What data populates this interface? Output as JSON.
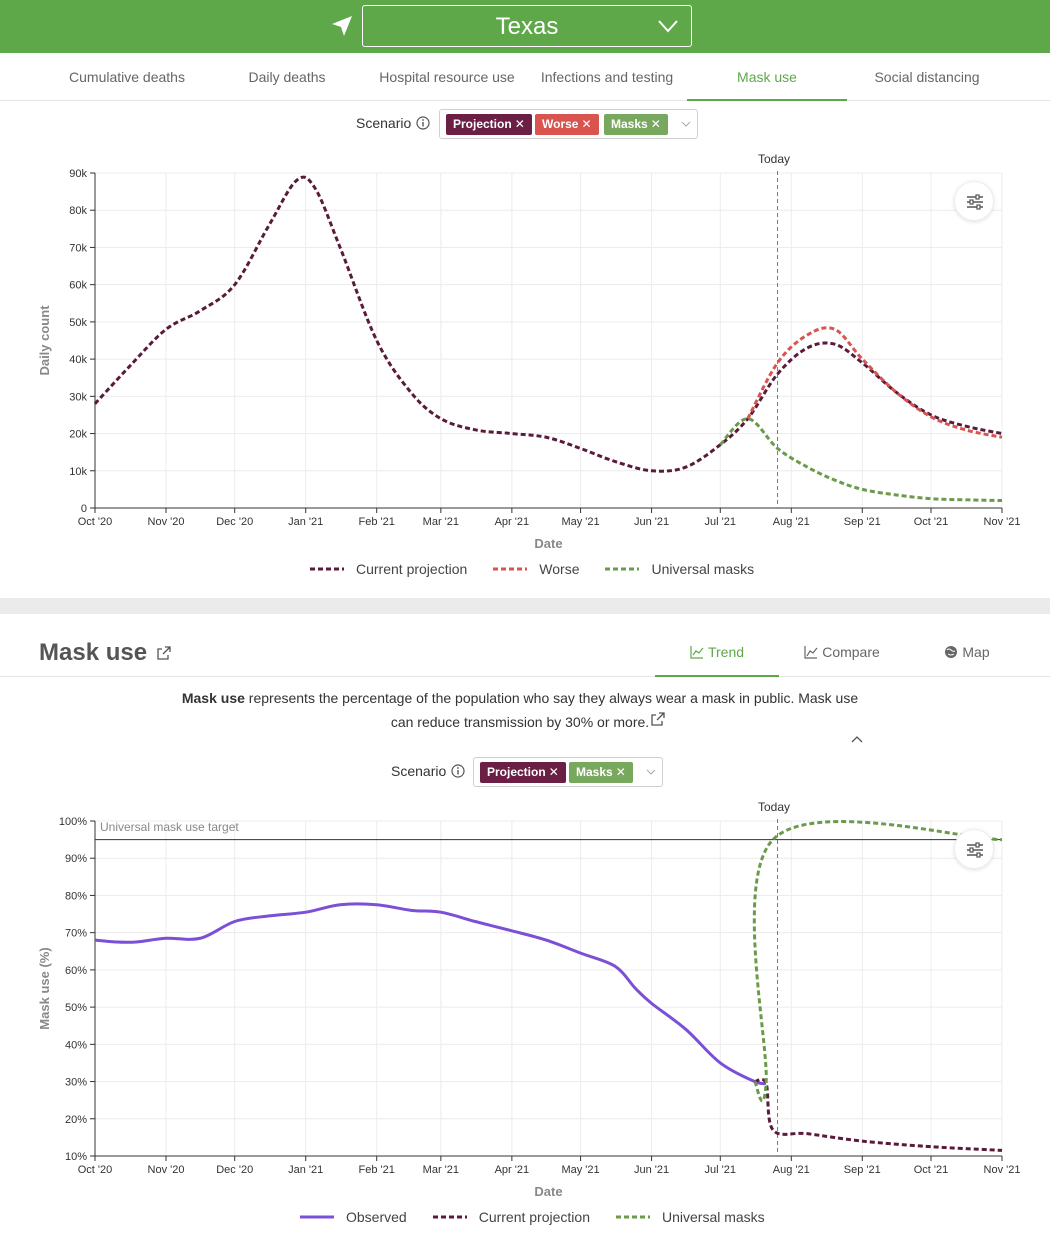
{
  "header": {
    "state": "Texas"
  },
  "tabs": [
    {
      "label": "Cumulative deaths",
      "active": false
    },
    {
      "label": "Daily deaths",
      "active": false
    },
    {
      "label": "Hospital resource use",
      "active": false
    },
    {
      "label": "Infections and testing",
      "active": false
    },
    {
      "label": "Mask use",
      "active": true
    },
    {
      "label": "Social distancing",
      "active": false
    }
  ],
  "infections_section": {
    "scenario_label": "Scenario",
    "chips": [
      {
        "label": "Projection",
        "color": "#6b1f45"
      },
      {
        "label": "Worse",
        "color": "#d9534f"
      },
      {
        "label": "Masks",
        "color": "#78a85e"
      }
    ],
    "today_label": "Today",
    "legend": [
      {
        "label": "Current projection",
        "color": "#5a1a3a"
      },
      {
        "label": "Worse",
        "color": "#d9534f"
      },
      {
        "label": "Universal masks",
        "color": "#6a9a4a"
      }
    ]
  },
  "mask_section": {
    "title": "Mask use",
    "subtabs": [
      {
        "label": "Trend",
        "active": true
      },
      {
        "label": "Compare",
        "active": false
      },
      {
        "label": "Map",
        "active": false
      }
    ],
    "description_bold": "Mask use",
    "description_rest": " represents the percentage of the population who say they always wear a mask in public. Mask use can reduce transmission by 30% or more.",
    "scenario_label": "Scenario",
    "chips": [
      {
        "label": "Projection",
        "color": "#6b1f45"
      },
      {
        "label": "Masks",
        "color": "#78a85e"
      }
    ],
    "today_label": "Today",
    "target_label": "Universal mask use target",
    "legend": [
      {
        "label": "Observed",
        "color": "#7b4fd6"
      },
      {
        "label": "Current projection",
        "color": "#5a1a3a"
      },
      {
        "label": "Universal masks",
        "color": "#6a9a4a"
      }
    ]
  },
  "chart_data": [
    {
      "type": "line",
      "xlabel": "Date",
      "ylabel": "Daily count",
      "x_ticks": [
        "Oct '20",
        "Nov '20",
        "Dec '20",
        "Jan '21",
        "Feb '21",
        "Mar '21",
        "Apr '21",
        "May '21",
        "Jun '21",
        "Jul '21",
        "Aug '21",
        "Sep '21",
        "Oct '21",
        "Nov '21"
      ],
      "y_ticks": [
        "0",
        "10k",
        "20k",
        "30k",
        "40k",
        "50k",
        "60k",
        "70k",
        "80k",
        "90k"
      ],
      "ylim": [
        0,
        90000
      ],
      "xlim": [
        "2020-10-01",
        "2021-11-01"
      ],
      "today": "2021-07-26",
      "legend_position": "bottom",
      "grid": true,
      "series": [
        {
          "name": "Current projection",
          "color": "#5a1a3a",
          "style": "dashed",
          "points": [
            [
              "2020-10-01",
              28000
            ],
            [
              "2020-10-16",
              38000
            ],
            [
              "2020-11-01",
              48000
            ],
            [
              "2020-11-16",
              53000
            ],
            [
              "2020-12-01",
              60000
            ],
            [
              "2020-12-16",
              76000
            ],
            [
              "2020-12-28",
              88000
            ],
            [
              "2021-01-05",
              86000
            ],
            [
              "2021-01-16",
              70000
            ],
            [
              "2021-02-01",
              45000
            ],
            [
              "2021-02-16",
              31000
            ],
            [
              "2021-03-01",
              24000
            ],
            [
              "2021-03-16",
              21000
            ],
            [
              "2021-04-01",
              20000
            ],
            [
              "2021-04-16",
              19000
            ],
            [
              "2021-05-01",
              16000
            ],
            [
              "2021-05-16",
              12500
            ],
            [
              "2021-06-01",
              10000
            ],
            [
              "2021-06-16",
              11000
            ],
            [
              "2021-07-01",
              17000
            ],
            [
              "2021-07-13",
              24000
            ],
            [
              "2021-07-26",
              36000
            ],
            [
              "2021-08-08",
              43000
            ],
            [
              "2021-08-20",
              44000
            ],
            [
              "2021-09-01",
              39000
            ],
            [
              "2021-09-16",
              31000
            ],
            [
              "2021-10-01",
              25000
            ],
            [
              "2021-10-16",
              22000
            ],
            [
              "2021-11-01",
              20000
            ]
          ]
        },
        {
          "name": "Worse",
          "color": "#d9534f",
          "style": "dashed",
          "points": [
            [
              "2021-07-13",
              24000
            ],
            [
              "2021-07-26",
              39000
            ],
            [
              "2021-08-08",
              46500
            ],
            [
              "2021-08-20",
              48000
            ],
            [
              "2021-09-01",
              40000
            ],
            [
              "2021-09-16",
              31000
            ],
            [
              "2021-10-01",
              24500
            ],
            [
              "2021-10-16",
              21000
            ],
            [
              "2021-11-01",
              19000
            ]
          ]
        },
        {
          "name": "Universal masks",
          "color": "#6a9a4a",
          "style": "dashed",
          "points": [
            [
              "2021-07-01",
              17000
            ],
            [
              "2021-07-13",
              24000
            ],
            [
              "2021-07-26",
              16000
            ],
            [
              "2021-08-08",
              11000
            ],
            [
              "2021-08-20",
              7500
            ],
            [
              "2021-09-01",
              5000
            ],
            [
              "2021-09-16",
              3500
            ],
            [
              "2021-10-01",
              2500
            ],
            [
              "2021-10-16",
              2200
            ],
            [
              "2021-11-01",
              2000
            ]
          ]
        }
      ]
    },
    {
      "type": "line",
      "xlabel": "Date",
      "ylabel": "Mask use (%)",
      "x_ticks": [
        "Oct '20",
        "Nov '20",
        "Dec '20",
        "Jan '21",
        "Feb '21",
        "Mar '21",
        "Apr '21",
        "May '21",
        "Jun '21",
        "Jul '21",
        "Aug '21",
        "Sep '21",
        "Oct '21",
        "Nov '21"
      ],
      "y_ticks": [
        "10%",
        "20%",
        "30%",
        "40%",
        "50%",
        "60%",
        "70%",
        "80%",
        "90%",
        "100%"
      ],
      "ylim": [
        10,
        100
      ],
      "xlim": [
        "2020-10-01",
        "2021-11-01"
      ],
      "today": "2021-07-26",
      "target": 95,
      "legend_position": "bottom",
      "grid": true,
      "series": [
        {
          "name": "Observed",
          "color": "#7b4fd6",
          "style": "solid",
          "points": [
            [
              "2020-10-01",
              68
            ],
            [
              "2020-10-10",
              67.5
            ],
            [
              "2020-10-19",
              67.5
            ],
            [
              "2020-11-01",
              68.5
            ],
            [
              "2020-11-16",
              68.5
            ],
            [
              "2020-12-01",
              73
            ],
            [
              "2020-12-16",
              74.5
            ],
            [
              "2021-01-01",
              75.5
            ],
            [
              "2021-01-16",
              77.5
            ],
            [
              "2021-02-01",
              77.5
            ],
            [
              "2021-02-16",
              76
            ],
            [
              "2021-03-01",
              75.5
            ],
            [
              "2021-03-16",
              73
            ],
            [
              "2021-04-01",
              70.5
            ],
            [
              "2021-04-16",
              68
            ],
            [
              "2021-05-01",
              64.5
            ],
            [
              "2021-05-16",
              61
            ],
            [
              "2021-05-25",
              55
            ],
            [
              "2021-06-01",
              51
            ],
            [
              "2021-06-16",
              44
            ],
            [
              "2021-07-01",
              35
            ],
            [
              "2021-07-16",
              30
            ],
            [
              "2021-07-21",
              29.5
            ]
          ]
        },
        {
          "name": "Current projection",
          "color": "#5a1a3a",
          "style": "dashed",
          "points": [
            [
              "2021-07-16",
              30
            ],
            [
              "2021-07-21",
              29.5
            ],
            [
              "2021-07-24",
              17
            ],
            [
              "2021-08-08",
              16
            ],
            [
              "2021-09-01",
              14
            ],
            [
              "2021-10-01",
              12.5
            ],
            [
              "2021-11-01",
              11.5
            ]
          ]
        },
        {
          "name": "Universal masks",
          "color": "#6a9a4a",
          "style": "dashed",
          "points": [
            [
              "2021-07-16",
              30
            ],
            [
              "2021-07-21",
              29.5
            ],
            [
              "2021-07-24",
              95
            ],
            [
              "2021-11-01",
              95
            ]
          ]
        }
      ]
    }
  ]
}
